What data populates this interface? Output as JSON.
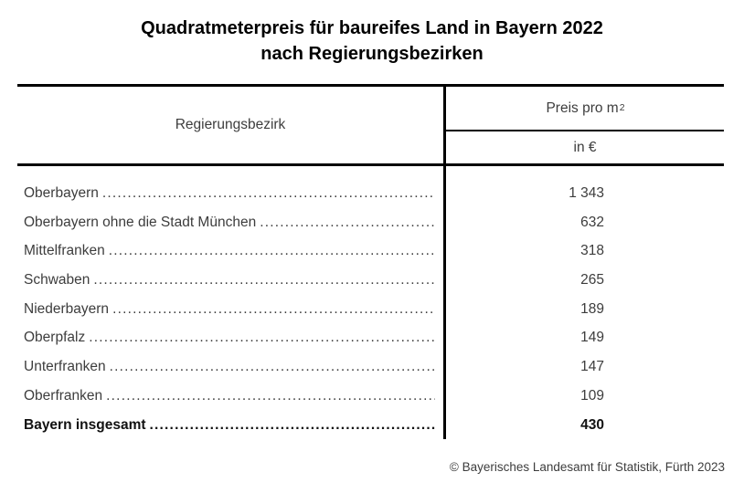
{
  "title": {
    "line1": "Quadratmeterpreis für baureifes Land in Bayern 2022",
    "line2": "nach Regierungsbezirken"
  },
  "table": {
    "col1_header": "Regierungsbezirk",
    "col2_header": {
      "text": "Preis pro m",
      "sup": "2"
    },
    "col2_subheader": "in €",
    "rows": [
      {
        "label": "Oberbayern",
        "value": "1 343"
      },
      {
        "label": "Oberbayern ohne die Stadt München",
        "value": "632"
      },
      {
        "label": "Mittelfranken",
        "value": "318"
      },
      {
        "label": "Schwaben",
        "value": "265"
      },
      {
        "label": "Niederbayern",
        "value": "189"
      },
      {
        "label": "Oberpfalz",
        "value": "149"
      },
      {
        "label": "Unterfranken",
        "value": "147"
      },
      {
        "label": "Oberfranken",
        "value": "109"
      },
      {
        "label": "Bayern insgesamt",
        "value": "430",
        "bold": true
      }
    ]
  },
  "footer": {
    "copyright": "© Bayerisches Landesamt für Statistik, Fürth 2023"
  },
  "colors": {
    "background": "#ffffff",
    "title_text": "#000000",
    "body_text": "#3d3d3d",
    "rule": "#000000"
  }
}
